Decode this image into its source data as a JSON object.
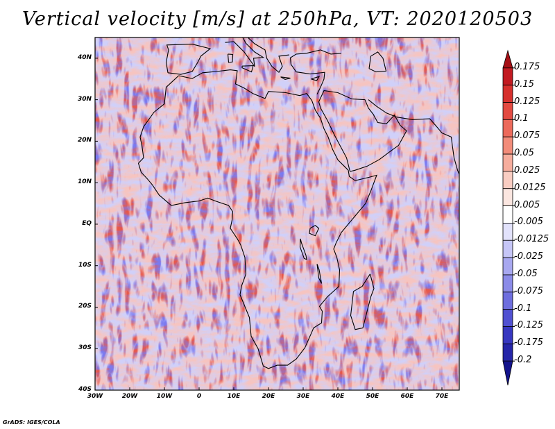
{
  "title": "Vertical velocity [m/s] at 250hPa, VT: 2020120503",
  "footer": "GrADS: IGES/COLA",
  "map": {
    "lon_range": [
      -30,
      75
    ],
    "lat_range": [
      -40,
      45
    ],
    "lat_ticks": [
      {
        "value": 40,
        "label": "40N"
      },
      {
        "value": 30,
        "label": "30N"
      },
      {
        "value": 20,
        "label": "20N"
      },
      {
        "value": 10,
        "label": "10N"
      },
      {
        "value": 0,
        "label": "EQ"
      },
      {
        "value": -10,
        "label": "10S"
      },
      {
        "value": -20,
        "label": "20S"
      },
      {
        "value": -30,
        "label": "30S"
      },
      {
        "value": -40,
        "label": "40S"
      }
    ],
    "lon_ticks": [
      {
        "value": -30,
        "label": "30W"
      },
      {
        "value": -20,
        "label": "20W"
      },
      {
        "value": -10,
        "label": "10W"
      },
      {
        "value": 0,
        "label": "0"
      },
      {
        "value": 10,
        "label": "10E"
      },
      {
        "value": 20,
        "label": "20E"
      },
      {
        "value": 30,
        "label": "30E"
      },
      {
        "value": 40,
        "label": "40E"
      },
      {
        "value": 50,
        "label": "50E"
      },
      {
        "value": 60,
        "label": "60E"
      },
      {
        "value": 70,
        "label": "70E"
      }
    ]
  },
  "colorbar": {
    "labels": [
      "0.175",
      "0.15",
      "0.125",
      "0.1",
      "0.075",
      "0.05",
      "0.025",
      "0.0125",
      "0.005",
      "-0.005",
      "-0.0125",
      "-0.025",
      "-0.05",
      "-0.075",
      "-0.1",
      "-0.125",
      "-0.175",
      "-0.2"
    ],
    "colors": [
      "#a50f15",
      "#c21a21",
      "#d6302d",
      "#e34a41",
      "#ec6a5b",
      "#f28c7a",
      "#f6ad9d",
      "#f9cdc2",
      "#fbe6e0",
      "#ffffff",
      "#e2e2fb",
      "#c6c6f7",
      "#a8a8f0",
      "#8b8be8",
      "#6e6ede",
      "#5151d2",
      "#3737c0",
      "#2525a8",
      "#13138c"
    ]
  },
  "colors": {
    "positive": "#e8574a",
    "negative": "#5a5ae6",
    "coast": "#000000"
  }
}
